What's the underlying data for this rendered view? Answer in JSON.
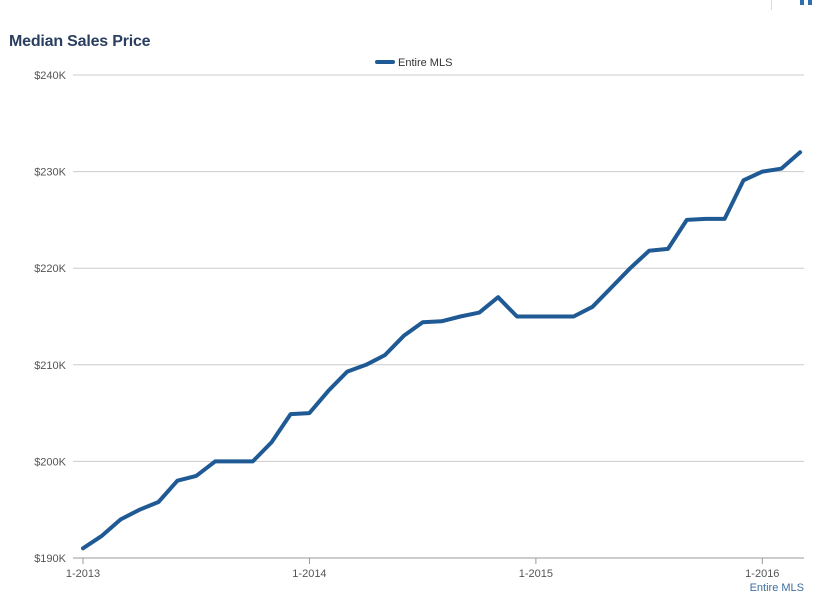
{
  "chart_data": {
    "type": "line",
    "title": "Median Sales Price",
    "xlabel": "",
    "ylabel": "",
    "x_tick_labels": [
      "1-2013",
      "1-2014",
      "1-2015",
      "1-2016"
    ],
    "y_tick_labels": [
      "$240K",
      "$230K",
      "$220K",
      "$210K",
      "$200K",
      "$190K"
    ],
    "ylim": [
      190000,
      240000
    ],
    "y_ticks": [
      240000,
      230000,
      220000,
      210000,
      200000,
      190000
    ],
    "x_tick_index": [
      0,
      12,
      24,
      36
    ],
    "grid": true,
    "legend_position": "top-center",
    "series": [
      {
        "name": "Entire MLS",
        "color": "#1f5a94",
        "x": [
          "1-2013",
          "2-2013",
          "3-2013",
          "4-2013",
          "5-2013",
          "6-2013",
          "7-2013",
          "8-2013",
          "9-2013",
          "10-2013",
          "11-2013",
          "12-2013",
          "1-2014",
          "2-2014",
          "3-2014",
          "4-2014",
          "5-2014",
          "6-2014",
          "7-2014",
          "8-2014",
          "9-2014",
          "10-2014",
          "11-2014",
          "12-2014",
          "1-2015",
          "2-2015",
          "3-2015",
          "4-2015",
          "5-2015",
          "6-2015",
          "7-2015",
          "8-2015",
          "9-2015",
          "10-2015",
          "11-2015",
          "12-2015",
          "1-2016",
          "2-2016",
          "3-2016"
        ],
        "values": [
          191000,
          192300,
          194000,
          195000,
          195800,
          198000,
          198500,
          200000,
          200000,
          200000,
          202000,
          204900,
          205000,
          207300,
          209300,
          210000,
          211000,
          213000,
          214400,
          214500,
          215000,
          215400,
          217000,
          215000,
          215000,
          215000,
          215000,
          216000,
          218000,
          220000,
          221800,
          222000,
          225000,
          225100,
          225100,
          229100,
          230000,
          230300,
          232000
        ]
      }
    ]
  },
  "source_label": "Entire MLS"
}
